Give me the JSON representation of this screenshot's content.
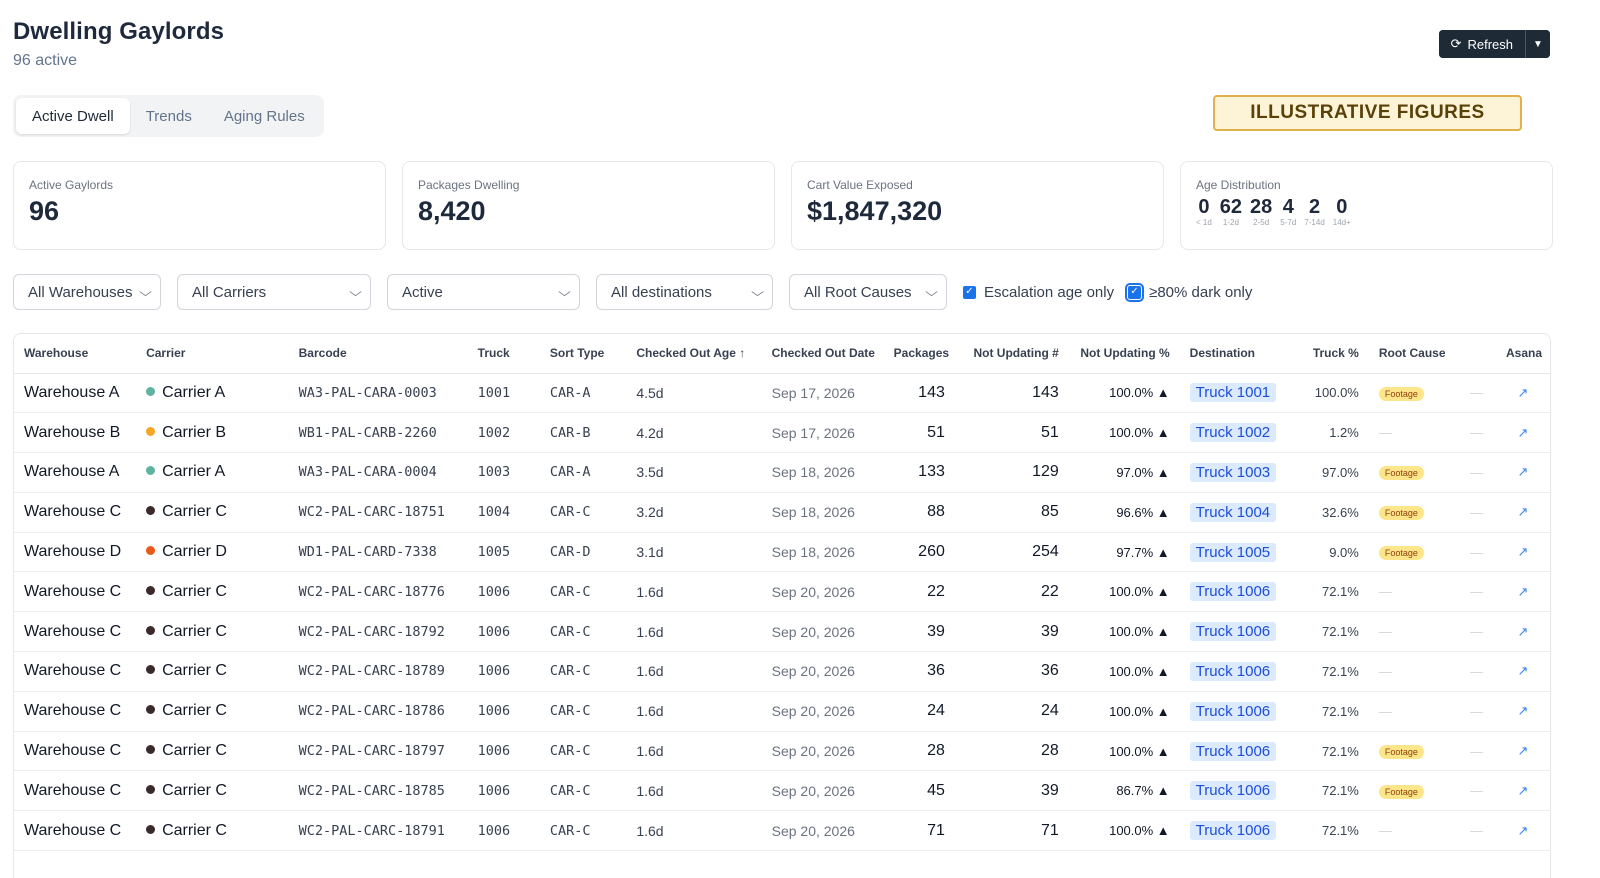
{
  "header": {
    "title": "Dwelling Gaylords",
    "subtitle": "96 active"
  },
  "refresh": {
    "label": "Refresh"
  },
  "tabs": [
    {
      "label": "Active Dwell",
      "active": true
    },
    {
      "label": "Trends",
      "active": false
    },
    {
      "label": "Aging Rules",
      "active": false
    }
  ],
  "banner": "ILLUSTRATIVE FIGURES",
  "cards": {
    "active_gaylords": {
      "label": "Active Gaylords",
      "value": "96"
    },
    "packages_dwelling": {
      "label": "Packages Dwelling",
      "value": "8,420"
    },
    "cart_value": {
      "label": "Cart Value Exposed",
      "value": "$1,847,320"
    },
    "age_distribution": {
      "label": "Age Distribution",
      "buckets": [
        {
          "count": "0",
          "label": "< 1d"
        },
        {
          "count": "62",
          "label": "1-2d"
        },
        {
          "count": "28",
          "label": "2-5d"
        },
        {
          "count": "4",
          "label": "5-7d"
        },
        {
          "count": "2",
          "label": "7-14d"
        },
        {
          "count": "0",
          "label": "14d+"
        }
      ]
    }
  },
  "filters": {
    "warehouses": "All Warehouses",
    "carriers": "All Carriers",
    "status": "Active",
    "destinations": "All destinations",
    "root_causes": "All Root Causes",
    "escalation_only": {
      "label": "Escalation age only",
      "checked": true
    },
    "dark_only": {
      "label": "≥80% dark only",
      "checked": true
    }
  },
  "table": {
    "columns": [
      "Warehouse",
      "Carrier",
      "Barcode",
      "Truck",
      "Sort Type",
      "Checked Out Age ↑",
      "Checked Out Date",
      "Packages",
      "Not Updating #",
      "Not Updating %",
      "Destination",
      "Truck %",
      "Root Cause",
      "",
      "Asana"
    ],
    "colors": {
      "Carrier A": "#5fb3a1",
      "Carrier B": "#f5a623",
      "Carrier C": "#3b2a2a",
      "Carrier D": "#e8591a"
    },
    "rows": [
      {
        "warehouse": "Warehouse A",
        "carrier": "Carrier A",
        "barcode": "WA3-PAL-CARA-0003",
        "truck": "1001",
        "sort": "CAR-A",
        "age": "4.5d",
        "date": "Sep 17, 2026",
        "packages": "143",
        "not_upd": "143",
        "not_pct": "100.0% ▲",
        "dest": "Truck 1001",
        "truck_pct": "100.0%",
        "root": "Footage",
        "dash": "—"
      },
      {
        "warehouse": "Warehouse B",
        "carrier": "Carrier B",
        "barcode": "WB1-PAL-CARB-2260",
        "truck": "1002",
        "sort": "CAR-B",
        "age": "4.2d",
        "date": "Sep 17, 2026",
        "packages": "51",
        "not_upd": "51",
        "not_pct": "100.0% ▲",
        "dest": "Truck 1002",
        "truck_pct": "1.2%",
        "root": "—",
        "dash": "—"
      },
      {
        "warehouse": "Warehouse A",
        "carrier": "Carrier A",
        "barcode": "WA3-PAL-CARA-0004",
        "truck": "1003",
        "sort": "CAR-A",
        "age": "3.5d",
        "date": "Sep 18, 2026",
        "packages": "133",
        "not_upd": "129",
        "not_pct": "97.0% ▲",
        "dest": "Truck 1003",
        "truck_pct": "97.0%",
        "root": "Footage",
        "dash": "—"
      },
      {
        "warehouse": "Warehouse C",
        "carrier": "Carrier C",
        "barcode": "WC2-PAL-CARC-18751",
        "truck": "1004",
        "sort": "CAR-C",
        "age": "3.2d",
        "date": "Sep 18, 2026",
        "packages": "88",
        "not_upd": "85",
        "not_pct": "96.6% ▲",
        "dest": "Truck 1004",
        "truck_pct": "32.6%",
        "root": "Footage",
        "dash": "—"
      },
      {
        "warehouse": "Warehouse D",
        "carrier": "Carrier D",
        "barcode": "WD1-PAL-CARD-7338",
        "truck": "1005",
        "sort": "CAR-D",
        "age": "3.1d",
        "date": "Sep 18, 2026",
        "packages": "260",
        "not_upd": "254",
        "not_pct": "97.7% ▲",
        "dest": "Truck 1005",
        "truck_pct": "9.0%",
        "root": "Footage",
        "dash": "—"
      },
      {
        "warehouse": "Warehouse C",
        "carrier": "Carrier C",
        "barcode": "WC2-PAL-CARC-18776",
        "truck": "1006",
        "sort": "CAR-C",
        "age": "1.6d",
        "date": "Sep 20, 2026",
        "packages": "22",
        "not_upd": "22",
        "not_pct": "100.0% ▲",
        "dest": "Truck 1006",
        "truck_pct": "72.1%",
        "root": "—",
        "dash": "—"
      },
      {
        "warehouse": "Warehouse C",
        "carrier": "Carrier C",
        "barcode": "WC2-PAL-CARC-18792",
        "truck": "1006",
        "sort": "CAR-C",
        "age": "1.6d",
        "date": "Sep 20, 2026",
        "packages": "39",
        "not_upd": "39",
        "not_pct": "100.0% ▲",
        "dest": "Truck 1006",
        "truck_pct": "72.1%",
        "root": "—",
        "dash": "—"
      },
      {
        "warehouse": "Warehouse C",
        "carrier": "Carrier C",
        "barcode": "WC2-PAL-CARC-18789",
        "truck": "1006",
        "sort": "CAR-C",
        "age": "1.6d",
        "date": "Sep 20, 2026",
        "packages": "36",
        "not_upd": "36",
        "not_pct": "100.0% ▲",
        "dest": "Truck 1006",
        "truck_pct": "72.1%",
        "root": "—",
        "dash": "—"
      },
      {
        "warehouse": "Warehouse C",
        "carrier": "Carrier C",
        "barcode": "WC2-PAL-CARC-18786",
        "truck": "1006",
        "sort": "CAR-C",
        "age": "1.6d",
        "date": "Sep 20, 2026",
        "packages": "24",
        "not_upd": "24",
        "not_pct": "100.0% ▲",
        "dest": "Truck 1006",
        "truck_pct": "72.1%",
        "root": "—",
        "dash": "—"
      },
      {
        "warehouse": "Warehouse C",
        "carrier": "Carrier C",
        "barcode": "WC2-PAL-CARC-18797",
        "truck": "1006",
        "sort": "CAR-C",
        "age": "1.6d",
        "date": "Sep 20, 2026",
        "packages": "28",
        "not_upd": "28",
        "not_pct": "100.0% ▲",
        "dest": "Truck 1006",
        "truck_pct": "72.1%",
        "root": "Footage",
        "dash": "—"
      },
      {
        "warehouse": "Warehouse C",
        "carrier": "Carrier C",
        "barcode": "WC2-PAL-CARC-18785",
        "truck": "1006",
        "sort": "CAR-C",
        "age": "1.6d",
        "date": "Sep 20, 2026",
        "packages": "45",
        "not_upd": "39",
        "not_pct": "86.7% ▲",
        "dest": "Truck 1006",
        "truck_pct": "72.1%",
        "root": "Footage",
        "dash": "—"
      },
      {
        "warehouse": "Warehouse C",
        "carrier": "Carrier C",
        "barcode": "WC2-PAL-CARC-18791",
        "truck": "1006",
        "sort": "CAR-C",
        "age": "1.6d",
        "date": "Sep 20, 2026",
        "packages": "71",
        "not_upd": "71",
        "not_pct": "100.0% ▲",
        "dest": "Truck 1006",
        "truck_pct": "72.1%",
        "root": "—",
        "dash": "—"
      }
    ]
  }
}
